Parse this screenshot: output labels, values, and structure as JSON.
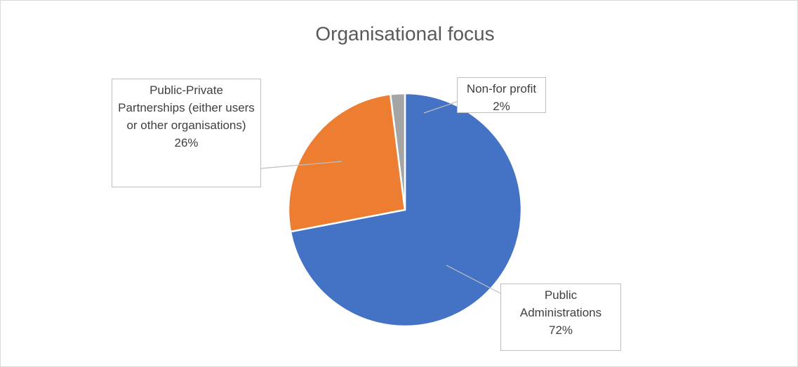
{
  "chart_data": {
    "type": "pie",
    "title": "Organisational focus",
    "categories": [
      "Public Administrations",
      "Public-Private Partnerships (either users or other organisations)",
      "Non-for profit"
    ],
    "values": [
      72,
      26,
      2
    ],
    "value_labels": [
      "72%",
      "26%",
      "2%"
    ],
    "colors": [
      "#4472c4",
      "#ed7d31",
      "#a5a5a5"
    ]
  }
}
